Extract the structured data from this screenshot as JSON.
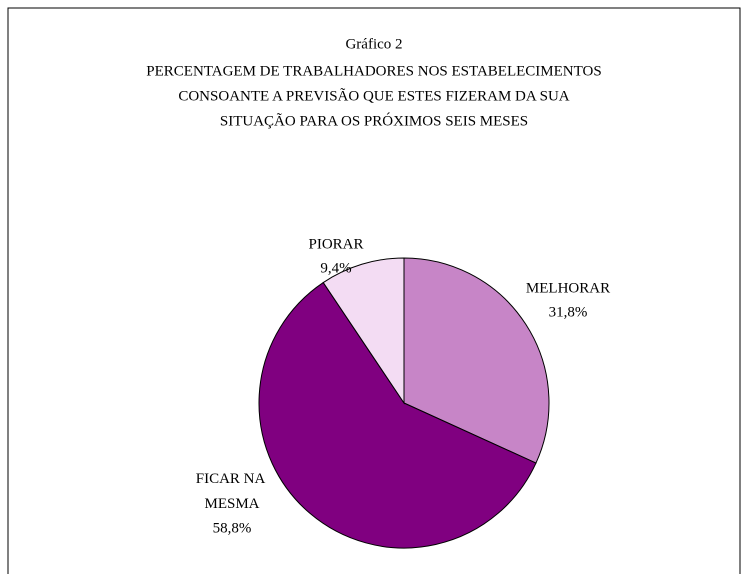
{
  "chart_data": {
    "type": "pie",
    "title": [
      "Gráfico 2",
      "PERCENTAGEM DE TRABALHADORES NOS ESTABELECIMENTOS",
      "CONSOANTE A PREVISÃO QUE ESTES FIZERAM DA SUA",
      "SITUAÇÃO PARA OS PRÓXIMOS SEIS MESES"
    ],
    "categories": [
      "MELHORAR",
      "FICAR NA MESMA",
      "PIORAR"
    ],
    "values": [
      31.8,
      58.8,
      9.4
    ],
    "value_labels": [
      "31,8%",
      "58,8%",
      "9,4%"
    ],
    "colors": [
      "#c785c7",
      "#800080",
      "#f3dcf3"
    ]
  }
}
